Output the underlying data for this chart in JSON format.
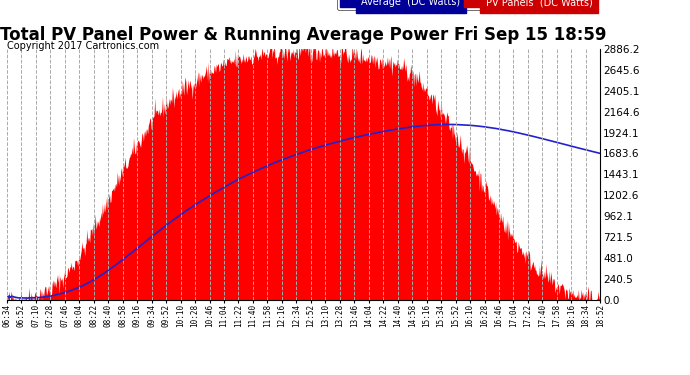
{
  "title": "Total PV Panel Power & Running Average Power Fri Sep 15 18:59",
  "copyright": "Copyright 2017 Cartronics.com",
  "ylabel_right_ticks": [
    0.0,
    240.5,
    481.0,
    721.5,
    962.1,
    1202.6,
    1443.1,
    1683.6,
    1924.1,
    2164.6,
    2405.1,
    2645.6,
    2886.2
  ],
  "ylim": [
    0,
    2886.2
  ],
  "x_labels": [
    "06:34",
    "06:52",
    "07:10",
    "07:28",
    "07:46",
    "08:04",
    "08:22",
    "08:40",
    "08:58",
    "09:16",
    "09:34",
    "09:52",
    "10:10",
    "10:28",
    "10:46",
    "11:04",
    "11:22",
    "11:40",
    "11:58",
    "12:16",
    "12:34",
    "12:52",
    "13:10",
    "13:28",
    "13:46",
    "14:04",
    "14:22",
    "14:40",
    "14:58",
    "15:16",
    "15:34",
    "15:52",
    "16:10",
    "16:28",
    "16:46",
    "17:04",
    "17:22",
    "17:40",
    "17:58",
    "18:16",
    "18:34",
    "18:52"
  ],
  "pv_color": "#ff0000",
  "avg_color": "#2222cc",
  "bg_color": "#ffffff",
  "grid_color": "#aaaaaa",
  "title_fontsize": 12,
  "copyright_fontsize": 7,
  "legend_avg_bg": "#000099",
  "legend_pv_bg": "#cc0000",
  "pv_values": [
    8,
    15,
    50,
    120,
    280,
    500,
    820,
    1150,
    1480,
    1780,
    2050,
    2250,
    2400,
    2520,
    2620,
    2700,
    2760,
    2800,
    2820,
    2840,
    2850,
    2855,
    2860,
    2830,
    2810,
    2780,
    2750,
    2700,
    2600,
    2400,
    2150,
    1900,
    1600,
    1300,
    980,
    700,
    480,
    300,
    160,
    70,
    25,
    8
  ]
}
